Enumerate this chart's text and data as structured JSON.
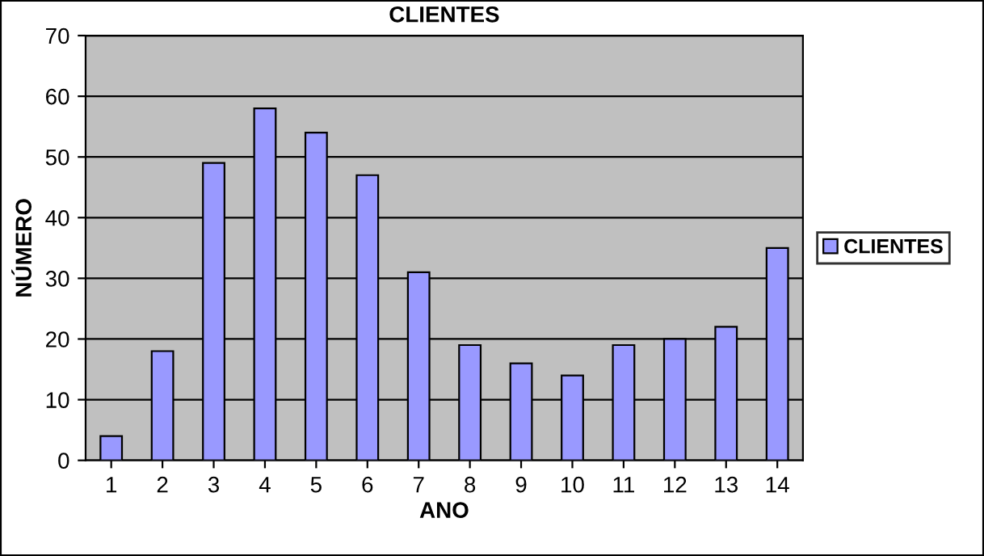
{
  "chart_data": {
    "type": "bar",
    "title": "CLIENTES",
    "xlabel": "ANO",
    "ylabel": "NÚMERO",
    "categories": [
      "1",
      "2",
      "3",
      "4",
      "5",
      "6",
      "7",
      "8",
      "9",
      "10",
      "11",
      "12",
      "13",
      "14"
    ],
    "series": [
      {
        "name": "CLIENTES",
        "color": "#9999ff",
        "values": [
          4,
          18,
          49,
          58,
          54,
          47,
          31,
          19,
          16,
          14,
          19,
          20,
          22,
          35
        ]
      }
    ],
    "ylim": [
      0,
      70
    ],
    "yticks": [
      0,
      10,
      20,
      30,
      40,
      50,
      60,
      70
    ],
    "grid": "y",
    "legend": "right"
  }
}
